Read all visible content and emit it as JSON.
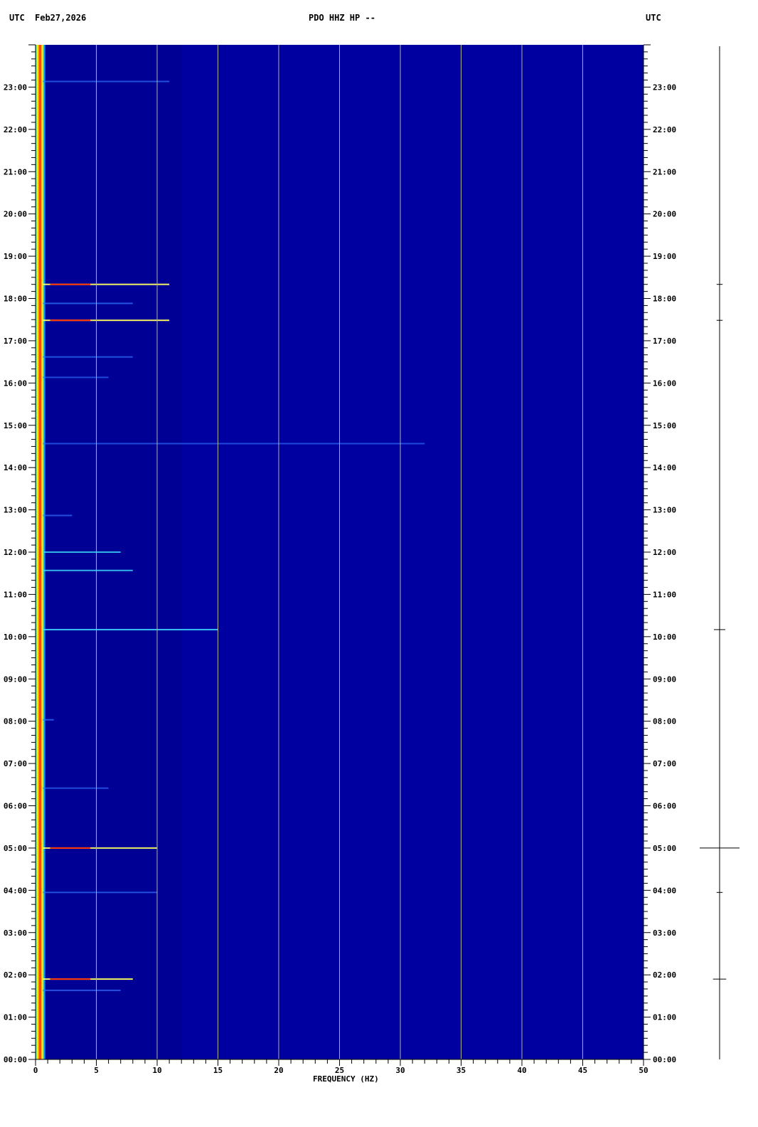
{
  "header": {
    "left_tz": "UTC",
    "date": "Feb27,2026",
    "title": "PDO HHZ HP --",
    "right_tz": "UTC"
  },
  "chart_data": {
    "type": "heatmap",
    "title": "PDO HHZ HP --",
    "xlabel": "FREQUENCY (HZ)",
    "ylabel": "",
    "xlim": [
      0,
      50
    ],
    "ylim_hours": [
      0,
      24
    ],
    "x_ticks": [
      "0",
      "5",
      "10",
      "15",
      "20",
      "25",
      "30",
      "35",
      "40",
      "45",
      "50"
    ],
    "y_ticks": [
      "00:00",
      "01:00",
      "02:00",
      "03:00",
      "04:00",
      "05:00",
      "06:00",
      "07:00",
      "08:00",
      "09:00",
      "10:00",
      "11:00",
      "12:00",
      "13:00",
      "14:00",
      "15:00",
      "16:00",
      "17:00",
      "18:00",
      "19:00",
      "20:00",
      "21:00",
      "22:00",
      "23:00"
    ],
    "grid": true,
    "colormap": [
      "#0000a0",
      "#0030ff",
      "#00e0ff",
      "#ffff00",
      "#ff0000"
    ],
    "background_color": "#0000a0",
    "low_freq_band_hz": [
      0,
      0.7
    ],
    "events": [
      {
        "time": "23:08",
        "fmax_hz": 11,
        "strength": 0.4
      },
      {
        "time": "18:20",
        "fmax_hz": 11,
        "strength": 0.9
      },
      {
        "time": "17:53",
        "fmax_hz": 8,
        "strength": 0.5
      },
      {
        "time": "17:29",
        "fmax_hz": 11,
        "strength": 0.9
      },
      {
        "time": "16:37",
        "fmax_hz": 8,
        "strength": 0.4
      },
      {
        "time": "16:08",
        "fmax_hz": 6,
        "strength": 0.3
      },
      {
        "time": "14:34",
        "fmax_hz": 32,
        "strength": 0.3
      },
      {
        "time": "12:52",
        "fmax_hz": 3,
        "strength": 0.4
      },
      {
        "time": "12:00",
        "fmax_hz": 7,
        "strength": 0.6
      },
      {
        "time": "11:34",
        "fmax_hz": 8,
        "strength": 0.6
      },
      {
        "time": "10:10",
        "fmax_hz": 15,
        "strength": 0.7
      },
      {
        "time": "08:02",
        "fmax_hz": 1.5,
        "strength": 0.5
      },
      {
        "time": "06:25",
        "fmax_hz": 6,
        "strength": 0.3
      },
      {
        "time": "05:00",
        "fmax_hz": 10,
        "strength": 0.85
      },
      {
        "time": "03:57",
        "fmax_hz": 10,
        "strength": 0.4
      },
      {
        "time": "01:54",
        "fmax_hz": 8,
        "strength": 0.9
      },
      {
        "time": "01:38",
        "fmax_hz": 7,
        "strength": 0.4
      }
    ],
    "trace_events": [
      {
        "time": "05:00",
        "amplitude": 1.0
      },
      {
        "time": "01:54",
        "amplitude": 0.25
      },
      {
        "time": "10:10",
        "amplitude": 0.2
      },
      {
        "time": "18:20",
        "amplitude": 0.05
      },
      {
        "time": "17:29",
        "amplitude": 0.05
      },
      {
        "time": "03:57",
        "amplitude": 0.05
      }
    ]
  }
}
